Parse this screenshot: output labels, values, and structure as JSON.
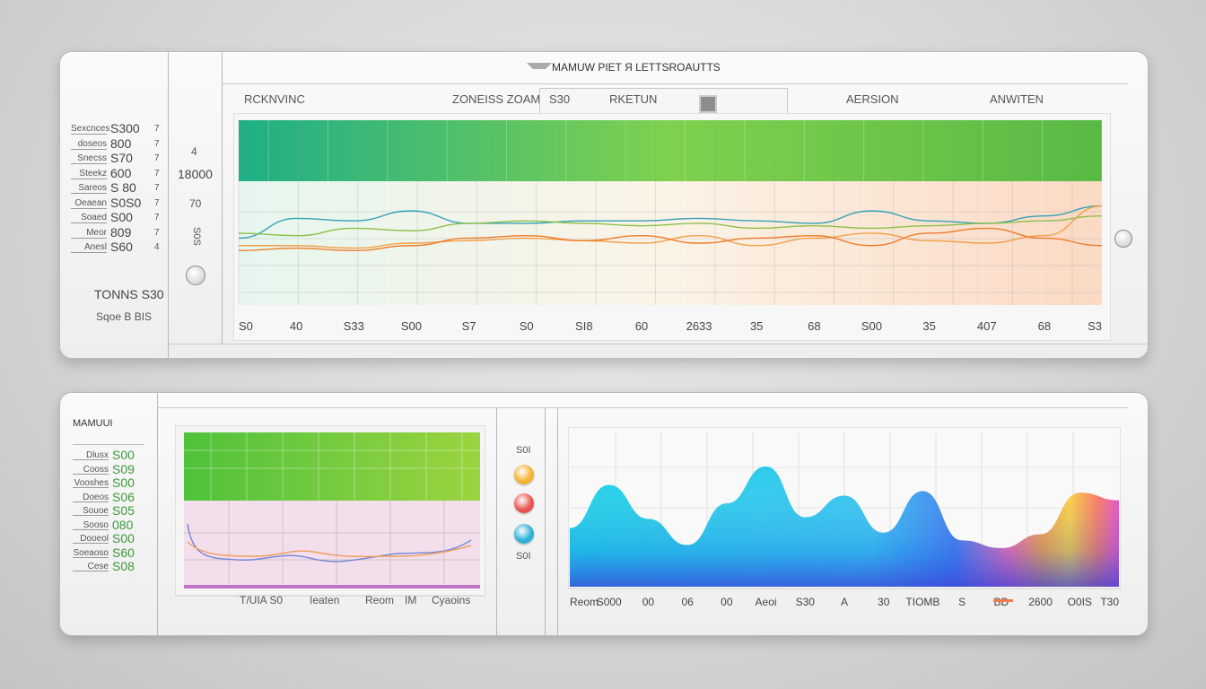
{
  "top_panel": {
    "title": "MAMUW PIET Я LETTSROAUTTS",
    "headers": {
      "h1": "RCKNVINC",
      "h2": "ZONEISS ZOAM",
      "h3": "S30",
      "h4": "RKETUN",
      "h5": "AERSION",
      "h6": "ANWITEN"
    },
    "side_rows": [
      {
        "label": "Sexcnces",
        "value": "S300",
        "mark": "7"
      },
      {
        "label": "doseos",
        "value": "800",
        "mark": "7"
      },
      {
        "label": "Snecss",
        "value": "S70",
        "mark": "7"
      },
      {
        "label": "Steekz",
        "value": "600",
        "mark": "7"
      },
      {
        "label": "Sareos",
        "value": "S 80",
        "mark": "7"
      },
      {
        "label": "Oeaean",
        "value": "S0S0",
        "mark": "7"
      },
      {
        "label": "Soaed",
        "value": "S00",
        "mark": "7"
      },
      {
        "label": "Meor",
        "value": "809",
        "mark": "7"
      },
      {
        "label": "Anesl",
        "value": "S60",
        "mark": "4"
      }
    ],
    "side_footer_1": "TONNS S30",
    "side_footer_2": "Sqoe B BIS",
    "mid_labels": {
      "a": "4",
      "b": "18000",
      "c": "70",
      "d": "S0S"
    },
    "chart_data": {
      "type": "line",
      "x": [
        "S0",
        "40",
        "S33",
        "S00",
        "S7",
        "S0",
        "SI8",
        "60",
        "2633",
        "35",
        "68",
        "S00",
        "35",
        "407",
        "68",
        "S3"
      ],
      "series": [
        {
          "color": "#34a0b8",
          "values": [
            27,
            35,
            34,
            38,
            33,
            33,
            34,
            34,
            35,
            34,
            33,
            38,
            34,
            33,
            36,
            40
          ]
        },
        {
          "color": "#8cc04a",
          "values": [
            29,
            28,
            31,
            30,
            33,
            34,
            33,
            32,
            33,
            31,
            32,
            31,
            32,
            33,
            34,
            36
          ]
        },
        {
          "color": "#f0a04a",
          "values": [
            24,
            24,
            23,
            25,
            26,
            27,
            26,
            25,
            28,
            24,
            27,
            29,
            26,
            25,
            28,
            40
          ]
        },
        {
          "color": "#ef7b2a",
          "values": [
            22,
            23,
            22,
            24,
            27,
            28,
            26,
            28,
            25,
            27,
            28,
            24,
            29,
            31,
            27,
            24
          ]
        }
      ],
      "ylim": [
        0,
        50
      ]
    }
  },
  "bottom_panel": {
    "title": "MAMUUI",
    "side_rows": [
      {
        "label": "Dlusx",
        "value": "S00"
      },
      {
        "label": "Cooss",
        "value": "S09"
      },
      {
        "label": "Vooshes",
        "value": "S00"
      },
      {
        "label": "Doeos",
        "value": "S06"
      },
      {
        "label": "Souoe",
        "value": "S05"
      },
      {
        "label": "Sooso",
        "value": "080"
      },
      {
        "label": "Dooeol",
        "value": "S00"
      },
      {
        "label": "Soeaoso",
        "value": "S60"
      },
      {
        "label": "Cese",
        "value": "S08"
      }
    ],
    "mini_chart_labels": [
      "T/UIA S0",
      "Ieaten",
      "Reom",
      "IM",
      "Cyaoins"
    ],
    "legend_top": "S0I",
    "legend_bottom": "S0I",
    "legend_colors": [
      "#f6b333",
      "#e9534f",
      "#2fb0d8"
    ],
    "chart_data": {
      "type": "area",
      "x": [
        "Reom",
        "S000",
        "00",
        "06",
        "00",
        "Aeoi",
        "S30",
        "A",
        "30",
        "TIOMB",
        "S",
        "BD",
        "2600",
        "O0IS",
        "T30"
      ],
      "values": [
        38,
        66,
        44,
        27,
        54,
        78,
        45,
        59,
        35,
        62,
        30,
        25,
        34,
        61,
        56
      ],
      "ylim": [
        0,
        100
      ],
      "colors": [
        "#22d8e8",
        "#2098ff",
        "#4a55e6",
        "#ff5cb0",
        "#ffcc33"
      ]
    }
  }
}
